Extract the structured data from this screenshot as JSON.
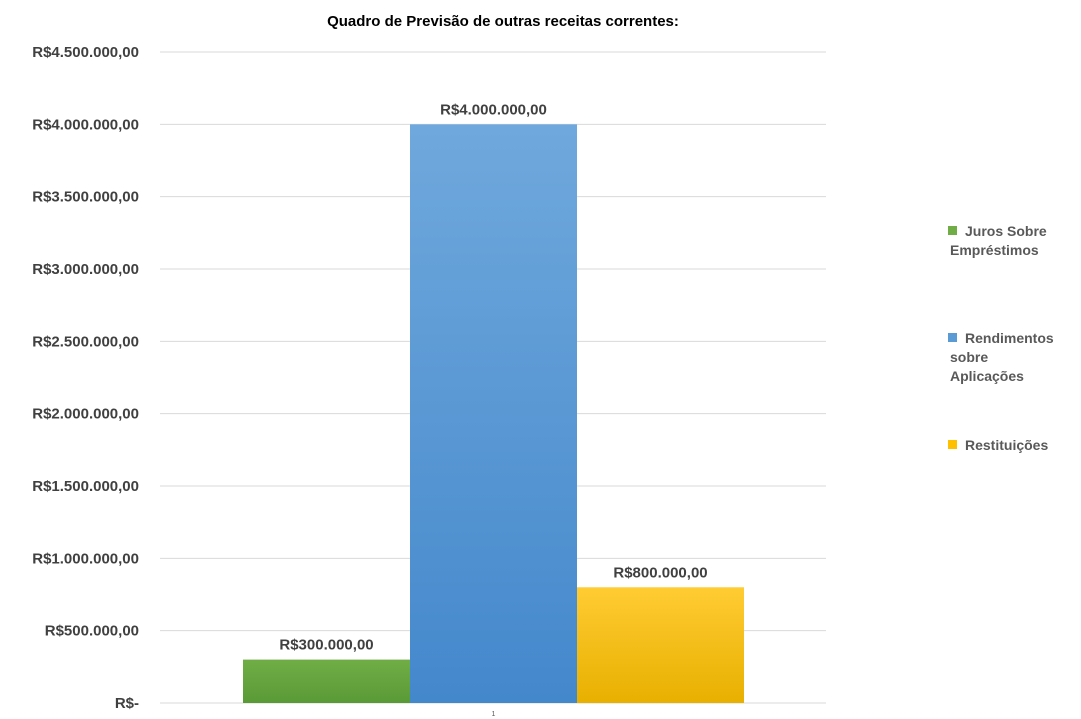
{
  "chart_data": {
    "type": "bar",
    "title": "Quadro de Previsão de outras receitas correntes:",
    "categories": [
      "1"
    ],
    "ylim": [
      0,
      4500000
    ],
    "ytick_values": [
      0,
      500000,
      1000000,
      1500000,
      2000000,
      2500000,
      3000000,
      3500000,
      4000000,
      4500000
    ],
    "ytick_labels": [
      "R$-",
      "R$500.000,00",
      "R$1.000.000,00",
      "R$1.500.000,00",
      "R$2.000.000,00",
      "R$2.500.000,00",
      "R$3.000.000,00",
      "R$3.500.000,00",
      "R$4.000.000,00",
      "R$4.500.000,00"
    ],
    "grid": true,
    "legend_position": "right",
    "series": [
      {
        "name_lines": [
          "Juros Sobre",
          "Empréstimos"
        ],
        "values": [
          300000
        ],
        "data_label": "R$300.000,00",
        "color": "#70ad47",
        "color_dark": "#5a9a36"
      },
      {
        "name_lines": [
          "Rendimentos",
          "sobre",
          "Aplicações"
        ],
        "values": [
          4000000
        ],
        "data_label": "R$4.000.000,00",
        "color": "#5b9bd5",
        "color_light": "#6fa8dc",
        "color_dark": "#4488cc"
      },
      {
        "name_lines": [
          "Restituições"
        ],
        "values": [
          800000
        ],
        "data_label": "R$800.000,00",
        "color": "#ffc000",
        "color_light": "#ffcc33",
        "color_dark": "#e8b000"
      }
    ]
  }
}
